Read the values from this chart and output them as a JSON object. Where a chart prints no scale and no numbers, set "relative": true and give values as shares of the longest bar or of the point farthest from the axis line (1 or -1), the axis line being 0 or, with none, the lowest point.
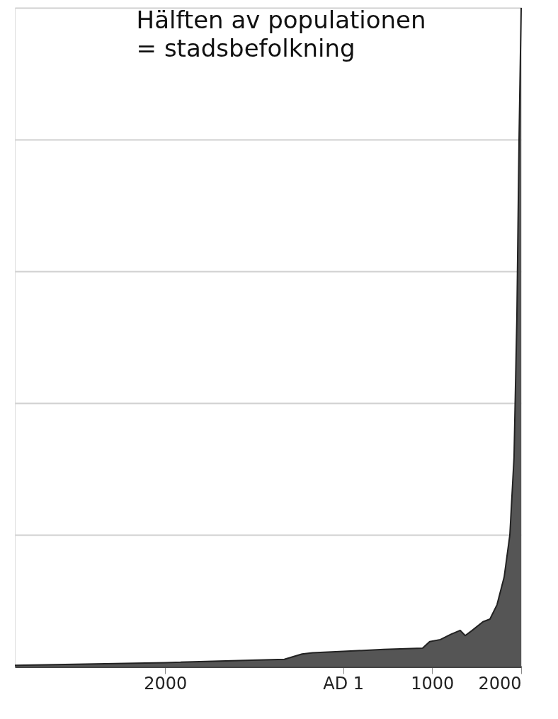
{
  "chart_data": {
    "type": "area",
    "relative": true,
    "x": [
      -3689,
      -2000,
      -661,
      -462,
      -343,
      0,
      454,
      892,
      972,
      1092,
      1211,
      1315,
      1371,
      1450,
      1570,
      1649,
      1729,
      1809,
      1873,
      1920,
      1952,
      1976,
      2000
    ],
    "series": [
      {
        "color": "#555555",
        "values": [
          0.002,
          0.006,
          0.011,
          0.019,
          0.021,
          0.023,
          0.026,
          0.028,
          0.038,
          0.041,
          0.049,
          0.055,
          0.047,
          0.055,
          0.068,
          0.072,
          0.094,
          0.136,
          0.2,
          0.318,
          0.531,
          0.797,
          1.0
        ]
      }
    ],
    "xlim": [
      -3689,
      2000
    ],
    "xticks": [
      {
        "value": -2000,
        "label": "2000"
      },
      {
        "value": 0,
        "label": "AD 1"
      },
      {
        "value": 1000,
        "label": "1000"
      },
      {
        "value": 2000,
        "label": "2000"
      }
    ],
    "grid": "y",
    "annotations": [
      "Hälften av populationen\n= stadsbefolkning"
    ]
  }
}
